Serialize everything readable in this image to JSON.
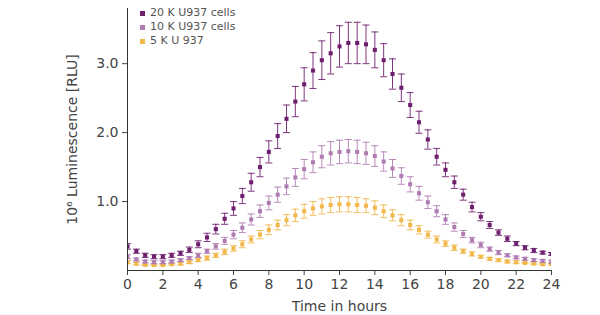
{
  "chart_data": {
    "type": "scatter",
    "x_label": "Time in hours",
    "y_label": "10⁶ Luminescence [RLU]",
    "xlim": [
      0,
      24
    ],
    "xticks": [
      0,
      2,
      4,
      6,
      8,
      10,
      12,
      14,
      16,
      18,
      20,
      22,
      24
    ],
    "ylim": [
      0,
      3.8
    ],
    "yticks": [
      {
        "value": 1,
        "label": "1.0"
      },
      {
        "value": 2,
        "label": "2.0"
      },
      {
        "value": 3,
        "label": "3.0"
      }
    ],
    "grid": false,
    "legend": "top-left",
    "marker": "square",
    "x": [
      0,
      0.5,
      1,
      1.5,
      2,
      2.5,
      3,
      3.5,
      4,
      4.5,
      5,
      5.5,
      6,
      6.5,
      7,
      7.5,
      8,
      8.5,
      9,
      9.5,
      10,
      10.5,
      11,
      11.5,
      12,
      12.5,
      13,
      13.5,
      14,
      14.5,
      15,
      15.5,
      16,
      16.5,
      17,
      17.5,
      18,
      18.5,
      19,
      19.5,
      20,
      20.5,
      21,
      21.5,
      22,
      22.5,
      23,
      23.5,
      24
    ],
    "series": [
      {
        "name": "20 K U937 cells",
        "color": "#6e1f6e",
        "values": [
          0.35,
          0.28,
          0.22,
          0.2,
          0.2,
          0.22,
          0.25,
          0.3,
          0.38,
          0.48,
          0.6,
          0.75,
          0.9,
          1.08,
          1.28,
          1.5,
          1.72,
          1.95,
          2.2,
          2.45,
          2.7,
          2.9,
          3.05,
          3.15,
          3.25,
          3.3,
          3.3,
          3.28,
          3.2,
          3.05,
          2.85,
          2.65,
          2.4,
          2.15,
          1.9,
          1.65,
          1.46,
          1.28,
          1.1,
          0.92,
          0.78,
          0.66,
          0.55,
          0.46,
          0.39,
          0.33,
          0.29,
          0.26,
          0.24
        ],
        "errors": [
          0.04,
          0.03,
          0.03,
          0.03,
          0.03,
          0.03,
          0.03,
          0.04,
          0.05,
          0.06,
          0.07,
          0.08,
          0.1,
          0.11,
          0.13,
          0.14,
          0.16,
          0.18,
          0.2,
          0.22,
          0.24,
          0.26,
          0.28,
          0.3,
          0.3,
          0.3,
          0.3,
          0.28,
          0.26,
          0.24,
          0.22,
          0.2,
          0.18,
          0.16,
          0.14,
          0.12,
          0.1,
          0.09,
          0.08,
          0.07,
          0.06,
          0.05,
          0.04,
          0.04,
          0.03,
          0.03,
          0.03,
          0.02,
          0.02
        ]
      },
      {
        "name": "10 K U937 cells",
        "color": "#b07db2",
        "values": [
          0.2,
          0.16,
          0.13,
          0.12,
          0.12,
          0.13,
          0.15,
          0.18,
          0.22,
          0.28,
          0.35,
          0.43,
          0.52,
          0.62,
          0.74,
          0.86,
          0.98,
          1.1,
          1.22,
          1.35,
          1.47,
          1.57,
          1.65,
          1.7,
          1.72,
          1.73,
          1.72,
          1.7,
          1.66,
          1.58,
          1.48,
          1.37,
          1.25,
          1.12,
          0.99,
          0.86,
          0.74,
          0.63,
          0.53,
          0.44,
          0.37,
          0.31,
          0.26,
          0.22,
          0.19,
          0.17,
          0.15,
          0.14,
          0.13
        ],
        "errors": [
          0.03,
          0.02,
          0.02,
          0.02,
          0.02,
          0.02,
          0.02,
          0.02,
          0.03,
          0.03,
          0.04,
          0.05,
          0.06,
          0.07,
          0.08,
          0.09,
          0.1,
          0.11,
          0.12,
          0.13,
          0.14,
          0.15,
          0.16,
          0.17,
          0.17,
          0.17,
          0.17,
          0.16,
          0.15,
          0.14,
          0.13,
          0.12,
          0.11,
          0.1,
          0.09,
          0.08,
          0.07,
          0.06,
          0.05,
          0.04,
          0.04,
          0.03,
          0.03,
          0.02,
          0.02,
          0.02,
          0.02,
          0.02,
          0.02
        ]
      },
      {
        "name": "5 K U 937",
        "color": "#f2b84b",
        "values": [
          0.12,
          0.1,
          0.08,
          0.08,
          0.08,
          0.09,
          0.1,
          0.12,
          0.15,
          0.18,
          0.22,
          0.27,
          0.32,
          0.38,
          0.45,
          0.52,
          0.59,
          0.66,
          0.73,
          0.8,
          0.86,
          0.9,
          0.93,
          0.95,
          0.96,
          0.96,
          0.95,
          0.94,
          0.91,
          0.86,
          0.8,
          0.73,
          0.66,
          0.59,
          0.52,
          0.45,
          0.39,
          0.33,
          0.28,
          0.24,
          0.2,
          0.17,
          0.15,
          0.13,
          0.12,
          0.11,
          0.1,
          0.09,
          0.09
        ],
        "errors": [
          0.02,
          0.02,
          0.01,
          0.01,
          0.01,
          0.01,
          0.02,
          0.02,
          0.02,
          0.03,
          0.03,
          0.04,
          0.04,
          0.05,
          0.05,
          0.06,
          0.07,
          0.07,
          0.08,
          0.09,
          0.1,
          0.1,
          0.11,
          0.11,
          0.11,
          0.11,
          0.11,
          0.1,
          0.1,
          0.09,
          0.08,
          0.08,
          0.07,
          0.06,
          0.05,
          0.05,
          0.04,
          0.04,
          0.03,
          0.03,
          0.02,
          0.02,
          0.02,
          0.02,
          0.02,
          0.01,
          0.01,
          0.01,
          0.01
        ]
      }
    ]
  }
}
